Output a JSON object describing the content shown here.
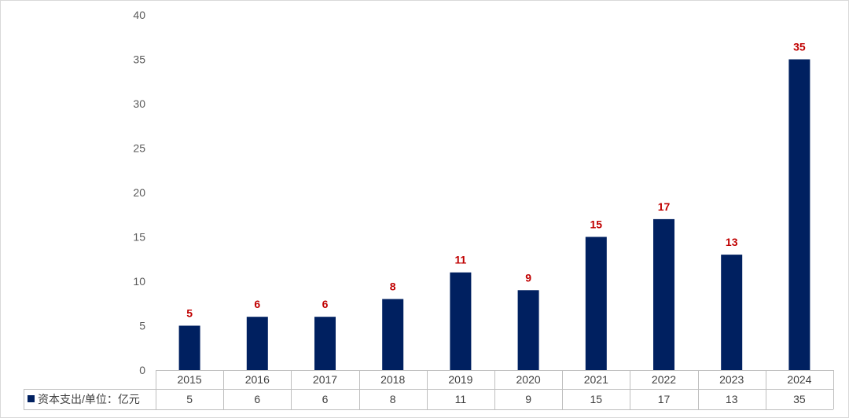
{
  "chart_data": {
    "type": "bar",
    "categories": [
      "2015",
      "2016",
      "2017",
      "2018",
      "2019",
      "2020",
      "2021",
      "2022",
      "2023",
      "2024"
    ],
    "series": [
      {
        "name": "资本支出/单位：亿元",
        "values": [
          5,
          6,
          6,
          8,
          11,
          9,
          15,
          17,
          13,
          35
        ],
        "color": "#002060"
      }
    ],
    "ylim": [
      0,
      40
    ],
    "yticks": [
      0,
      5,
      10,
      15,
      20,
      25,
      30,
      35,
      40
    ],
    "grid": false,
    "data_labels": true,
    "data_label_color": "#c00000",
    "legend_placement": "data-table",
    "data_table": true
  }
}
